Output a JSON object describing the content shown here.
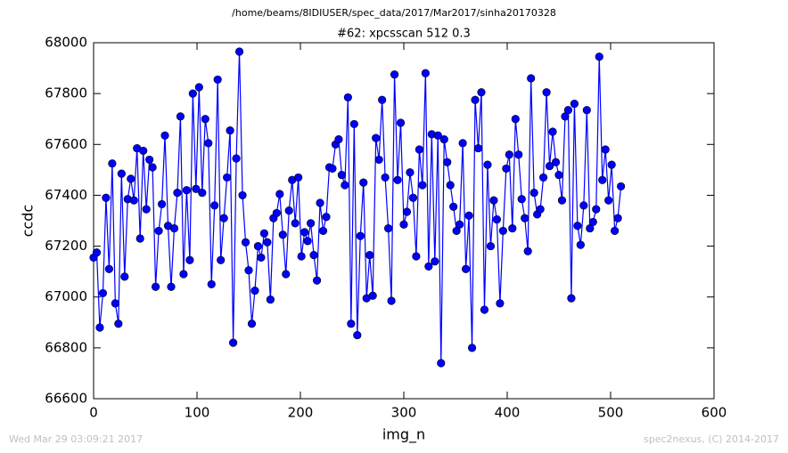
{
  "chart_data": {
    "type": "line",
    "title": "/home/beams/8IDIUSER/spec_data/2017/Mar2017/sinha20170328",
    "subtitle": "#62: xpcsscan 512 0.3",
    "x_label": "img_n",
    "y_label": "ccdc",
    "footer_left": "Wed Mar 29 03:09:21 2017",
    "footer_right": "spec2nexus, (C) 2014-2017",
    "color": "#0000ff",
    "xlim": [
      0,
      600
    ],
    "xticks": [
      0,
      100,
      200,
      300,
      400,
      500,
      600
    ],
    "ylim": [
      66600,
      68000
    ],
    "yticks": [
      66600,
      66800,
      67000,
      67200,
      67400,
      67600,
      67800,
      68000
    ],
    "x": [
      0,
      3,
      6,
      9,
      12,
      15,
      18,
      21,
      24,
      27,
      30,
      33,
      36,
      39,
      42,
      45,
      48,
      51,
      54,
      57,
      60,
      63,
      66,
      69,
      72,
      75,
      78,
      81,
      84,
      87,
      90,
      93,
      96,
      99,
      102,
      105,
      108,
      111,
      114,
      117,
      120,
      123,
      126,
      129,
      132,
      135,
      138,
      141,
      144,
      147,
      150,
      153,
      156,
      159,
      162,
      165,
      168,
      171,
      174,
      177,
      180,
      183,
      186,
      189,
      192,
      195,
      198,
      201,
      204,
      207,
      210,
      213,
      216,
      219,
      222,
      225,
      228,
      231,
      234,
      237,
      240,
      243,
      246,
      249,
      252,
      255,
      258,
      261,
      264,
      267,
      270,
      273,
      276,
      279,
      282,
      285,
      288,
      291,
      294,
      297,
      300,
      303,
      306,
      309,
      312,
      315,
      318,
      321,
      324,
      327,
      330,
      333,
      336,
      339,
      342,
      345,
      348,
      351,
      354,
      357,
      360,
      363,
      366,
      369,
      372,
      375,
      378,
      381,
      384,
      387,
      390,
      393,
      396,
      399,
      402,
      405,
      408,
      411,
      414,
      417,
      420,
      423,
      426,
      429,
      432,
      435,
      438,
      441,
      444,
      447,
      450,
      453,
      456,
      459,
      462,
      465,
      468,
      471,
      474,
      477,
      480,
      483,
      486,
      489,
      492,
      495,
      498,
      501,
      504,
      507,
      510
    ],
    "values": [
      67155,
      67175,
      66880,
      67015,
      67390,
      67110,
      67525,
      66975,
      66895,
      67485,
      67080,
      67385,
      67465,
      67380,
      67585,
      67230,
      67575,
      67345,
      67540,
      67510,
      67040,
      67260,
      67365,
      67635,
      67280,
      67040,
      67270,
      67410,
      67710,
      67090,
      67420,
      67145,
      67800,
      67425,
      67825,
      67410,
      67700,
      67605,
      67050,
      67360,
      67855,
      67145,
      67310,
      67470,
      67655,
      66820,
      67545,
      67965,
      67400,
      67215,
      67105,
      66895,
      67025,
      67200,
      67155,
      67250,
      67215,
      66990,
      67310,
      67330,
      67405,
      67245,
      67090,
      67340,
      67460,
      67290,
      67470,
      67160,
      67255,
      67220,
      67290,
      67165,
      67065,
      67370,
      67260,
      67315,
      67510,
      67505,
      67600,
      67620,
      67480,
      67440,
      67785,
      66895,
      67680,
      66850,
      67240,
      67450,
      66995,
      67165,
      67005,
      67625,
      67540,
      67775,
      67470,
      67270,
      66985,
      67875,
      67460,
      67685,
      67285,
      67335,
      67490,
      67390,
      67160,
      67580,
      67440,
      67880,
      67120,
      67640,
      67140,
      67635,
      66740,
      67620,
      67530,
      67440,
      67355,
      67260,
      67285,
      67605,
      67110,
      67320,
      66800,
      67775,
      67585,
      67805,
      66950,
      67520,
      67200,
      67380,
      67305,
      66975,
      67260,
      67505,
      67560,
      67270,
      67700,
      67560,
      67385,
      67310,
      67180,
      67860,
      67410,
      67325,
      67345,
      67470,
      67805,
      67515,
      67650,
      67530,
      67480,
      67380,
      67710,
      67735,
      66995,
      67760,
      67280,
      67205,
      67360,
      67735,
      67270,
      67295,
      67345,
      67945,
      67460,
      67580,
      67380,
      67520,
      67260,
      67310,
      67435
    ]
  }
}
